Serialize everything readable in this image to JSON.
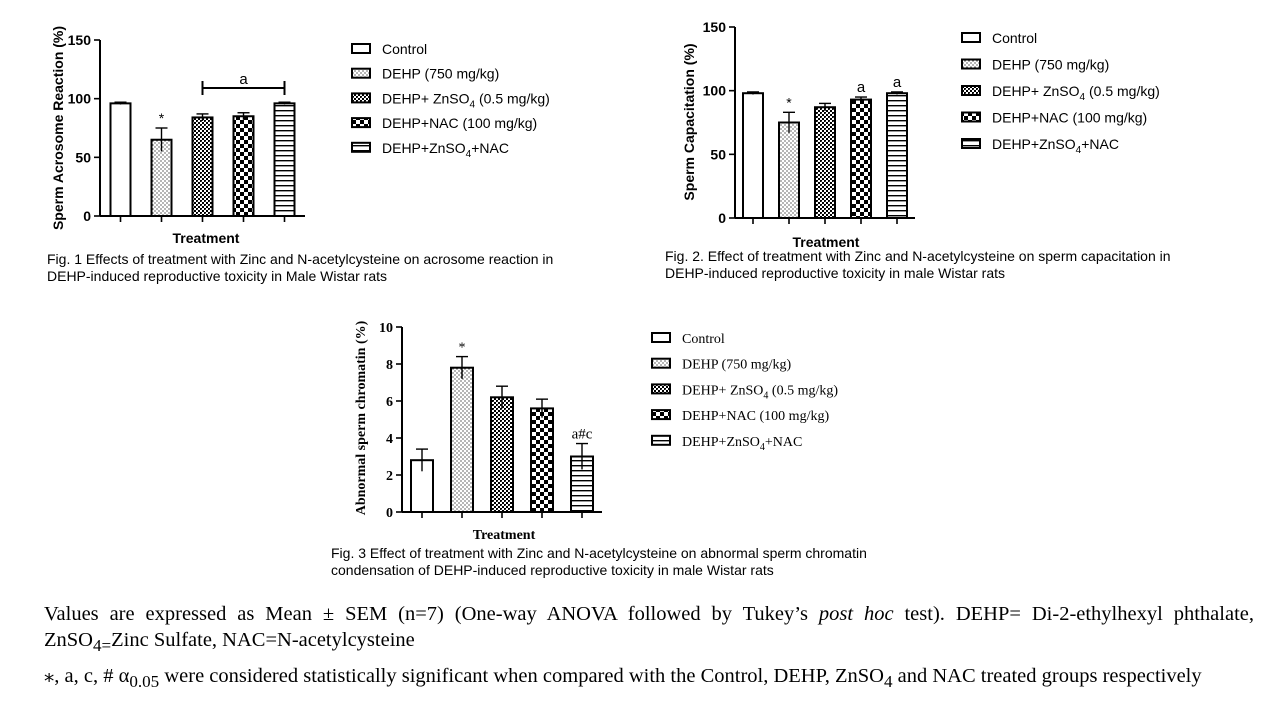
{
  "legend_entries": [
    "Control",
    "DEHP (750 mg/kg)",
    "DEHP+ ZnSO4 (0.5 mg/kg)",
    "DEHP+NAC (100 mg/kg)",
    "DEHP+ZnSO4+NAC"
  ],
  "chart_data": [
    {
      "type": "bar",
      "title": "",
      "xlabel": "Treatment",
      "ylabel": "Sperm Acrosome Reaction (%)",
      "ylim": [
        0,
        150
      ],
      "yticks": [
        "0",
        "50",
        "100",
        "150"
      ],
      "categories": [
        "Control",
        "DEHP (750 mg/kg)",
        "DEHP+ ZnSO4 (0.5 mg/kg)",
        "DEHP+NAC (100 mg/kg)",
        "DEHP+ZnSO4+NAC"
      ],
      "values": [
        96,
        65,
        84,
        85,
        96
      ],
      "errors": [
        1,
        10,
        3,
        3,
        1
      ],
      "annotations": [
        {
          "bar": 1,
          "text": "*"
        }
      ],
      "group_annotation": {
        "from": 2,
        "to": 4,
        "text": "a"
      },
      "legend": "right",
      "caption": [
        "Fig. 1 Effects of treatment with Zinc and N-acetylcysteine on acrosome reaction in",
        "DEHP-induced reproductive toxicity in Male Wistar rats"
      ]
    },
    {
      "type": "bar",
      "title": "",
      "xlabel": "Treatment",
      "ylabel": "Sperm Capacitation (%)",
      "ylim": [
        0,
        150
      ],
      "yticks": [
        "0",
        "50",
        "100",
        "150"
      ],
      "categories": [
        "Control",
        "DEHP (750 mg/kg)",
        "DEHP+ ZnSO4 (0.5 mg/kg)",
        "DEHP+NAC (100 mg/kg)",
        "DEHP+ZnSO4+NAC"
      ],
      "values": [
        98,
        75,
        87,
        93,
        98
      ],
      "errors": [
        1,
        8,
        3,
        2,
        1
      ],
      "annotations": [
        {
          "bar": 1,
          "text": "*"
        },
        {
          "bar": 3,
          "text": "a"
        },
        {
          "bar": 4,
          "text": "a"
        }
      ],
      "legend": "right",
      "caption": [
        "Fig. 2.  Effect of treatment with  Zinc and N-acetylcysteine on sperm capacitation   in",
        "DEHP-induced reproductive toxicity in male Wistar rats"
      ]
    },
    {
      "type": "bar",
      "title": "",
      "xlabel": "Treatment",
      "ylabel": "Abnormal sperm chromatin (%)",
      "ylim": [
        0,
        10
      ],
      "yticks": [
        "0",
        "2",
        "4",
        "6",
        "8",
        "10"
      ],
      "categories": [
        "Control",
        "DEHP (750 mg/kg)",
        "DEHP+ ZnSO4 (0.5 mg/kg)",
        "DEHP+NAC (100 mg/kg)",
        "DEHP+ZnSO4+NAC"
      ],
      "values": [
        2.8,
        7.8,
        6.2,
        5.6,
        3.0
      ],
      "errors": [
        0.6,
        0.6,
        0.6,
        0.5,
        0.7
      ],
      "annotations": [
        {
          "bar": 1,
          "text": "*"
        },
        {
          "bar": 4,
          "text": "a#c"
        }
      ],
      "legend": "right",
      "caption": [
        "Fig. 3 Effect of treatment with  Zinc and N-acetylcysteine on abnormal sperm chromatin",
        "condensation of DEHP-induced reproductive toxicity in male Wistar rats"
      ]
    }
  ],
  "footnote": {
    "line1_a": "Values are expressed as Mean ± SEM (n=7) (One-way ANOVA followed by Tukey’s ",
    "line1_italic": "post hoc",
    "line1_b": " test). DEHP= Di-2-ethylhexyl phthalate, ZnSO",
    "line1_sub": "4=",
    "line1_c": "Zinc Sulfate, NAC=N-acetylcysteine",
    "line2_a": "⁎, a, c, # α",
    "line2_sub": "0.05",
    "line2_b": " were considered statistically significant when compared with the Control, DEHP, ZnSO",
    "line2_sub2": "4",
    "line2_c": " and NAC treated groups respectively"
  },
  "colors": {
    "ink": "#000000",
    "background": "#ffffff"
  }
}
